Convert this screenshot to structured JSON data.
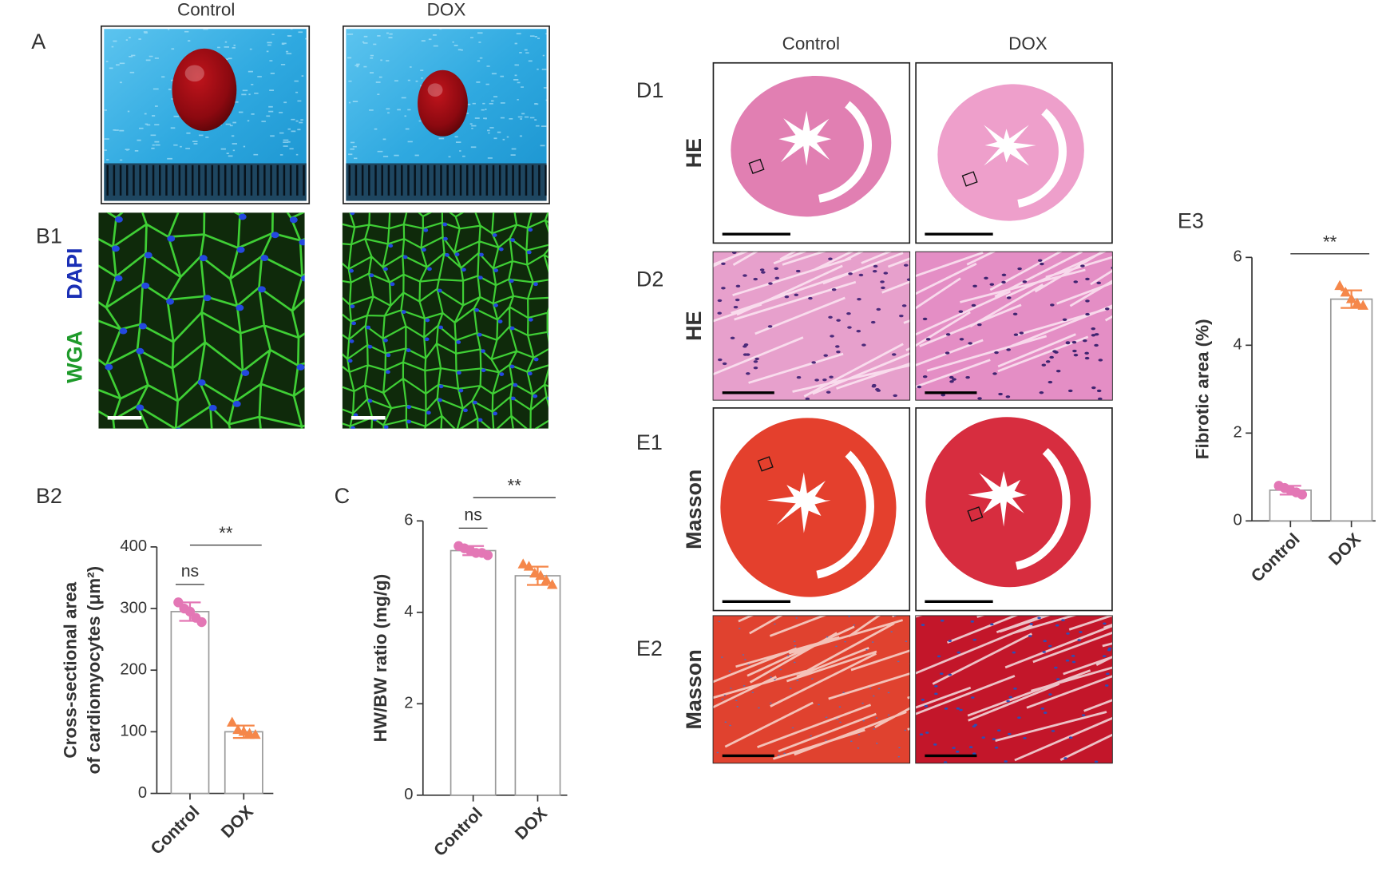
{
  "figure": {
    "panel_a": {
      "label": "A",
      "columns": [
        "Control",
        "DOX"
      ]
    },
    "panel_b1": {
      "label": "B1",
      "stains": [
        "DAPI",
        "WGA"
      ]
    },
    "panel_b2": {
      "label": "B2"
    },
    "panel_c": {
      "label": "C"
    },
    "panel_d": {
      "columns": [
        "Control",
        "DOX"
      ],
      "rows": [
        {
          "label": "D1",
          "stain": "HE"
        },
        {
          "label": "D2",
          "stain": "HE"
        },
        {
          "label": "E1",
          "stain": "Masson"
        },
        {
          "label": "E2",
          "stain": "Masson"
        }
      ]
    },
    "panel_e3": {
      "label": "E3"
    }
  },
  "chart_data": [
    {
      "type": "bar",
      "ylabel": [
        "Cross-sectional area",
        "of cardiomyocytes (μm²)"
      ],
      "categories": [
        "Control",
        "DOX"
      ],
      "values": [
        295,
        100
      ],
      "errors": [
        15,
        10
      ],
      "points": [
        [
          310,
          300,
          295,
          285,
          278
        ],
        [
          115,
          103,
          100,
          97,
          95
        ]
      ],
      "colors": [
        "#e377b5",
        "#f5874a"
      ],
      "ylim": [
        0,
        400
      ],
      "yticks": [
        0,
        100,
        200,
        300,
        400
      ],
      "annotations": [
        "ns",
        "**"
      ]
    },
    {
      "type": "bar",
      "ylabel": [
        "HW/BW ratio (mg/g)"
      ],
      "categories": [
        "Control",
        "DOX"
      ],
      "values": [
        5.35,
        4.8
      ],
      "errors": [
        0.1,
        0.2
      ],
      "points": [
        [
          5.45,
          5.4,
          5.35,
          5.3,
          5.3,
          5.25
        ],
        [
          5.05,
          5.0,
          4.85,
          4.8,
          4.7,
          4.6
        ]
      ],
      "colors": [
        "#e377b5",
        "#f5874a"
      ],
      "ylim": [
        0,
        6
      ],
      "yticks": [
        0,
        2,
        4,
        6
      ],
      "annotations": [
        "ns",
        "**"
      ]
    },
    {
      "type": "bar",
      "ylabel": [
        "Fibrotic area (%)"
      ],
      "categories": [
        "Control",
        "DOX"
      ],
      "values": [
        0.7,
        5.05
      ],
      "errors": [
        0.1,
        0.2
      ],
      "points": [
        [
          0.8,
          0.75,
          0.7,
          0.65,
          0.6
        ],
        [
          5.35,
          5.2,
          5.05,
          4.95,
          4.9
        ]
      ],
      "colors": [
        "#e377b5",
        "#f5874a"
      ],
      "ylim": [
        0,
        6
      ],
      "yticks": [
        0,
        2,
        4,
        6
      ],
      "annotations": [
        "**"
      ]
    }
  ]
}
